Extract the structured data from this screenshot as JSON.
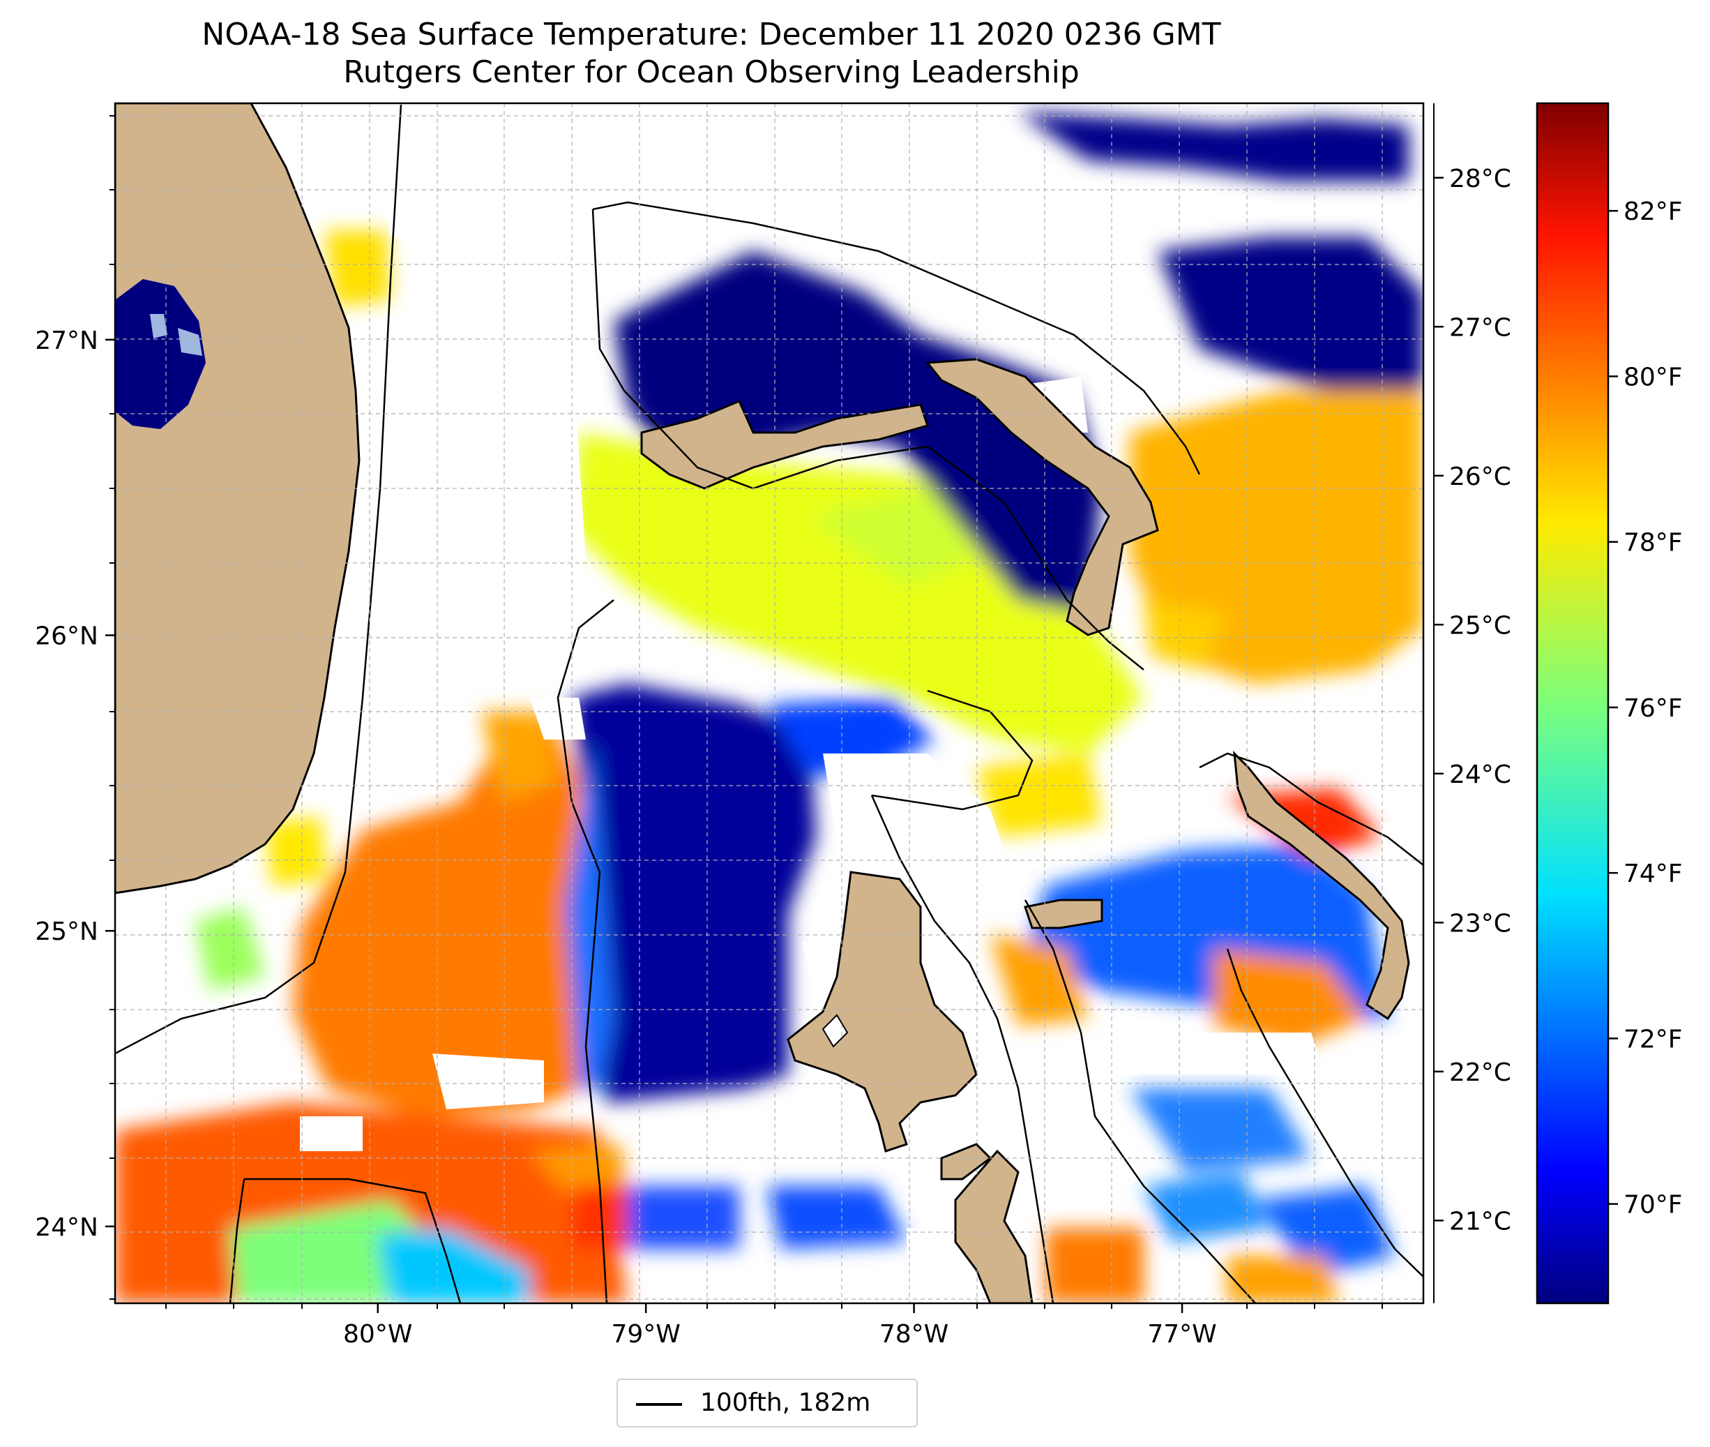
{
  "title": "NOAA-18 Sea Surface Temperature: December 11 2020 0236 GMT",
  "subtitle": "Rutgers Center for Ocean Observing Leadership",
  "map": {
    "lon_range": [
      -80.98,
      -76.1
    ],
    "lat_range": [
      23.74,
      27.8
    ],
    "lon_ticks": [
      {
        "value": -80,
        "label": "80°W"
      },
      {
        "value": -79,
        "label": "79°W"
      },
      {
        "value": -78,
        "label": "78°W"
      },
      {
        "value": -77,
        "label": "77°W"
      }
    ],
    "lat_ticks": [
      {
        "value": 24,
        "label": "24°N"
      },
      {
        "value": 25,
        "label": "25°N"
      },
      {
        "value": 26,
        "label": "26°N"
      },
      {
        "value": 27,
        "label": "27°N"
      }
    ],
    "grid": "dashed",
    "land_color": "#d2b48c",
    "no_data_color": "#ffffff",
    "bathymetry_contour": "100fth, 182m",
    "legend_position": "bottom-center"
  },
  "colorbar": {
    "colormap": "jet",
    "range_f": [
      68.8,
      83.3
    ],
    "celsius_ticks": [
      {
        "value": 21,
        "label": "21°C"
      },
      {
        "value": 22,
        "label": "22°C"
      },
      {
        "value": 23,
        "label": "23°C"
      },
      {
        "value": 24,
        "label": "24°C"
      },
      {
        "value": 25,
        "label": "25°C"
      },
      {
        "value": 26,
        "label": "26°C"
      },
      {
        "value": 27,
        "label": "27°C"
      },
      {
        "value": 28,
        "label": "28°C"
      }
    ],
    "fahrenheit_ticks": [
      {
        "value": 70,
        "label": "70°F"
      },
      {
        "value": 72,
        "label": "72°F"
      },
      {
        "value": 74,
        "label": "74°F"
      },
      {
        "value": 76,
        "label": "76°F"
      },
      {
        "value": 78,
        "label": "78°F"
      },
      {
        "value": 80,
        "label": "80°F"
      },
      {
        "value": 82,
        "label": "82°F"
      }
    ]
  }
}
